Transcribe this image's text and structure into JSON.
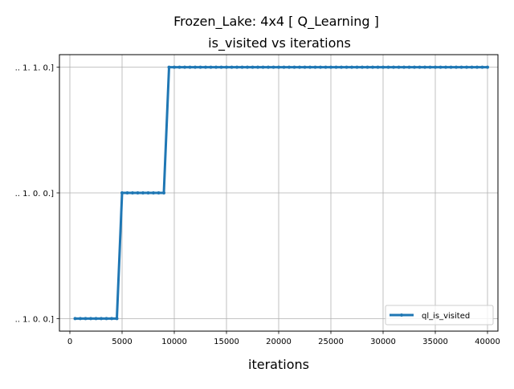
{
  "chart_data": {
    "type": "line",
    "title_line1": "Frozen_Lake: 4x4 [ Q_Learning ]",
    "title_line2": "is_visited vs iterations",
    "xlabel": "iterations",
    "ylabel": "",
    "xlim": [
      -1000,
      41000
    ],
    "ylim": [
      -0.1,
      2.1
    ],
    "grid": true,
    "legend_position": "lower-right",
    "x_ticks": [
      0,
      5000,
      10000,
      15000,
      20000,
      25000,
      30000,
      35000,
      40000
    ],
    "y_ticks": [
      {
        "value": 0,
        "label": ".. 1. 0. 0.]"
      },
      {
        "value": 1,
        "label": ".. 1. 0. 0.]"
      },
      {
        "value": 2,
        "label": ".. 1. 1. 0.]"
      }
    ],
    "series": [
      {
        "name": "ql_is_visited",
        "color": "#1f77b4",
        "x_start": 500,
        "x_step": 500,
        "steps": [
          {
            "from": 500,
            "to": 4500,
            "y": 0
          },
          {
            "from": 5000,
            "to": 9000,
            "y": 1
          },
          {
            "from": 9500,
            "to": 40000,
            "y": 2
          }
        ]
      }
    ]
  }
}
